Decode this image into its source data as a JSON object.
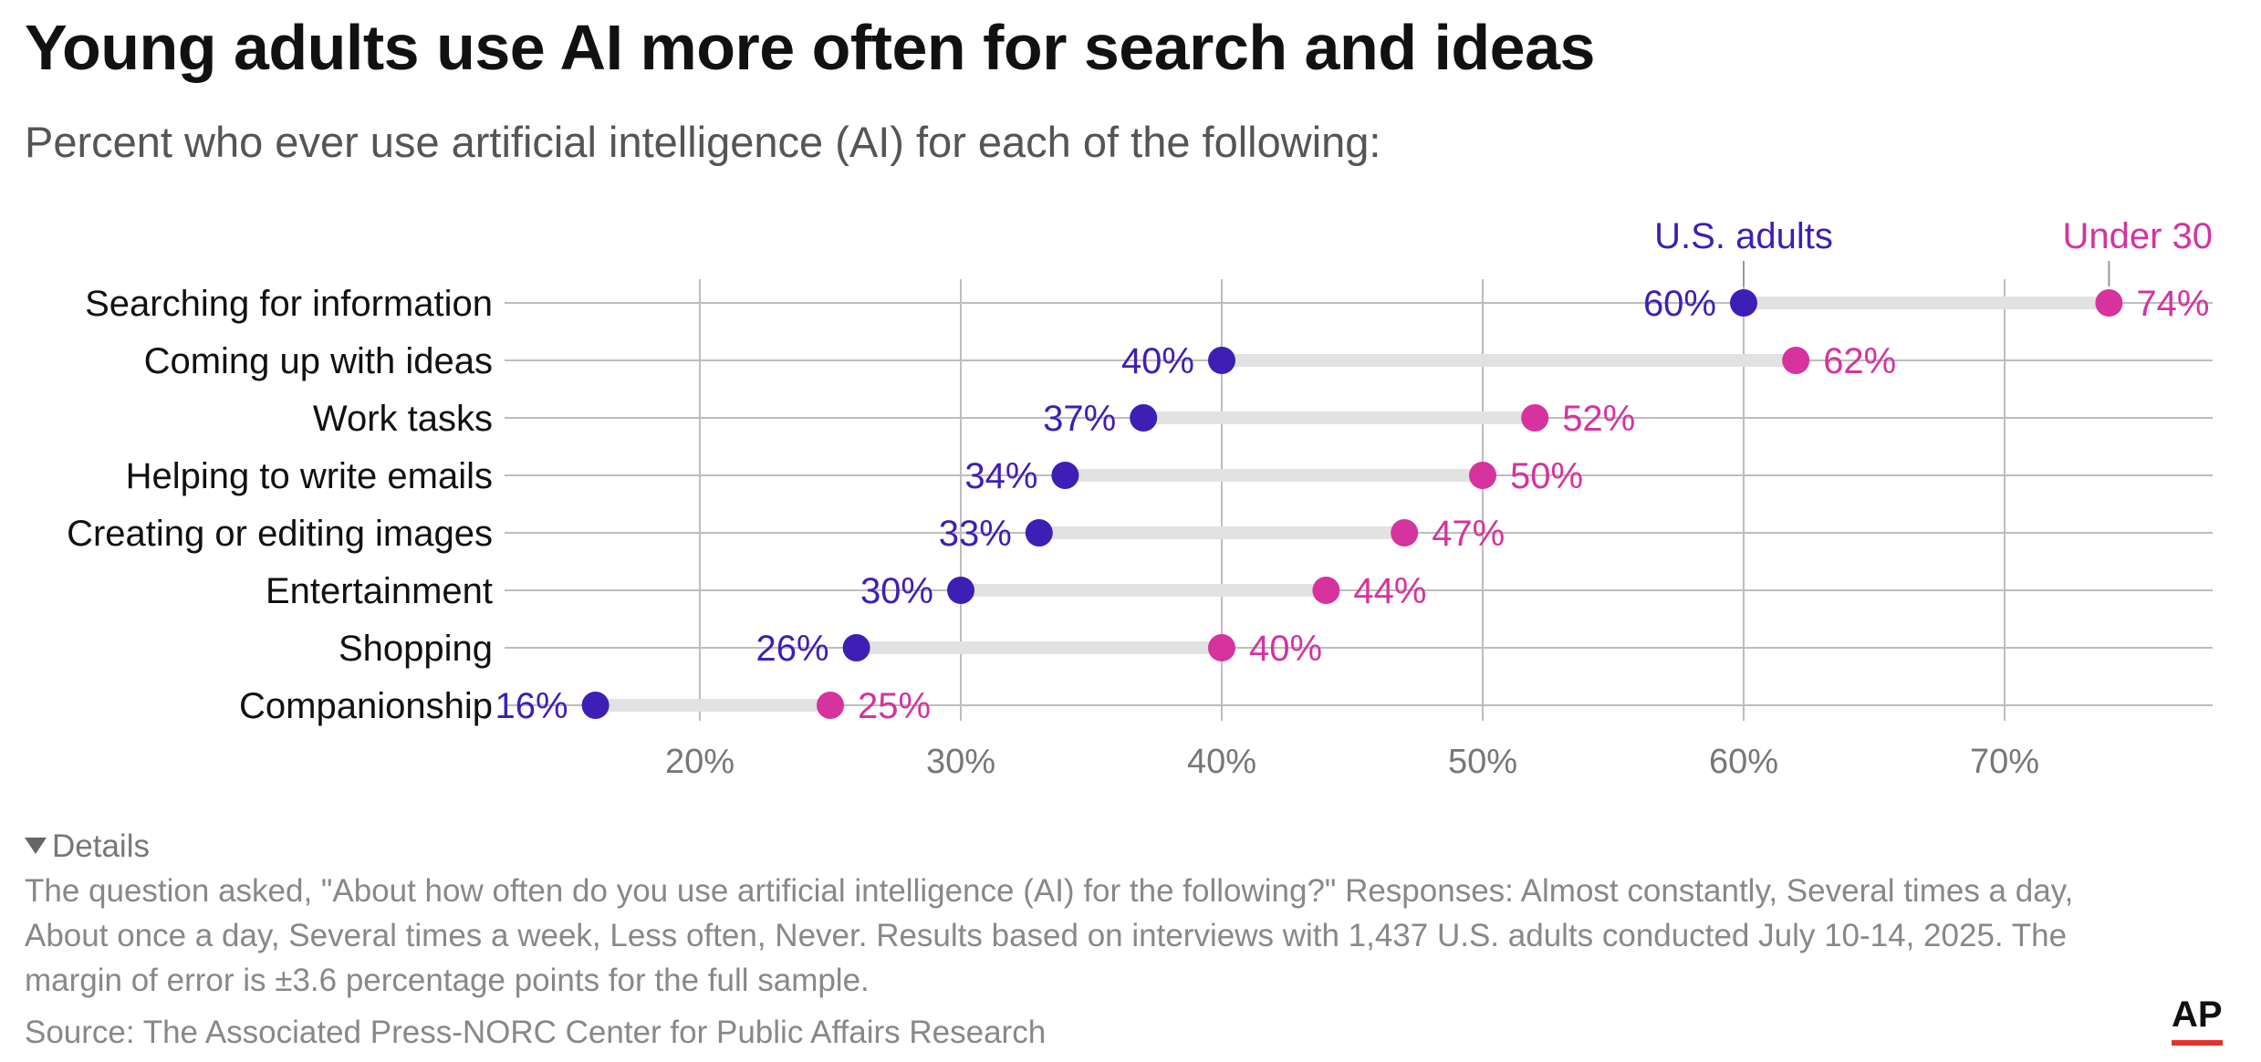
{
  "title": "Young adults use AI more often for search and ideas",
  "subtitle": "Percent who ever use artificial intelligence (AI) for each of the following:",
  "details_label": "Details",
  "details_text": "The question asked, \"About how often do you use artificial intelligence (AI) for the following?\" Responses: Almost constantly, Several times a day, About once a day, Several times a week, Less often, Never. Results based on interviews with 1,437 U.S. adults conducted July 10-14, 2025. The margin of error is ±3.6 percentage points for the full sample.",
  "source": "Source: The Associated Press-NORC Center for Public Affairs Research",
  "logo": "AP",
  "colors": {
    "us_adults": "#3d1fb5",
    "under_30": "#d6339f",
    "connector": "#e2e2e2",
    "grid": "#bdbdbd"
  },
  "chart_data": {
    "type": "dot-range",
    "title": "Young adults use AI more often for search and ideas",
    "categories": [
      "Searching for information",
      "Coming up with ideas",
      "Work tasks",
      "Helping to write emails",
      "Creating or editing images",
      "Entertainment",
      "Shopping",
      "Companionship"
    ],
    "series": [
      {
        "name": "U.S. adults",
        "values": [
          60,
          40,
          37,
          34,
          33,
          30,
          26,
          16
        ],
        "labels": [
          "60%",
          "40%",
          "37%",
          "34%",
          "33%",
          "30%",
          "26%",
          "16%"
        ]
      },
      {
        "name": "Under 30",
        "values": [
          74,
          62,
          52,
          50,
          47,
          44,
          40,
          25
        ],
        "labels": [
          "74%",
          "62%",
          "52%",
          "50%",
          "47%",
          "44%",
          "40%",
          "25%"
        ]
      }
    ],
    "x_ticks": [
      20,
      30,
      40,
      50,
      60,
      70
    ],
    "x_tick_labels": [
      "20%",
      "30%",
      "40%",
      "50%",
      "60%",
      "70%"
    ],
    "xlim": [
      12.5,
      78.5
    ],
    "grid": true,
    "legend": "direct labels above first row"
  }
}
